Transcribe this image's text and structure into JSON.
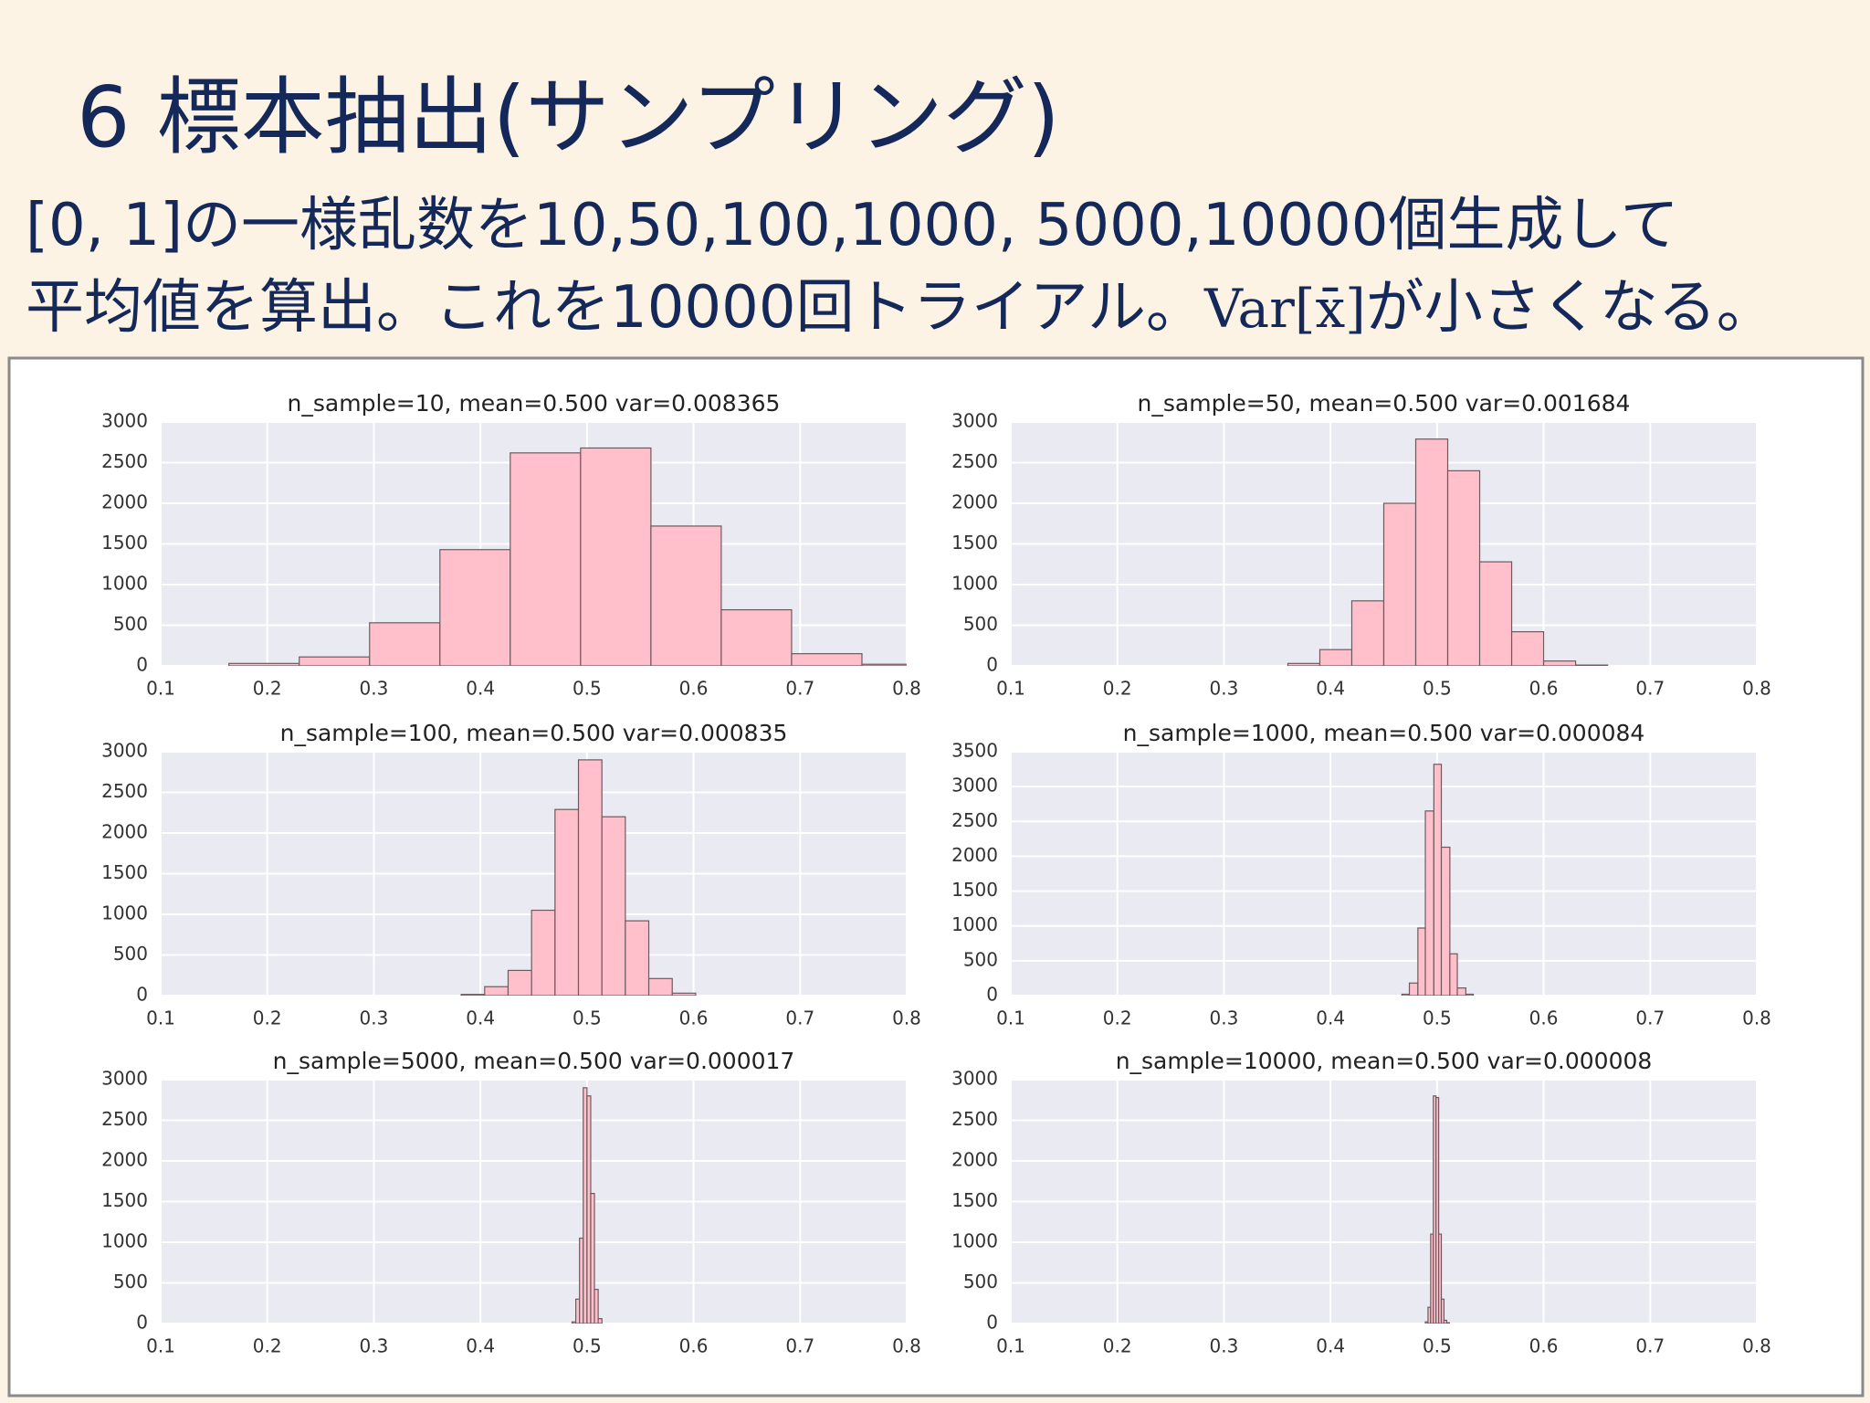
{
  "slide": {
    "title": "6 標本抽出(サンプリング)",
    "subtitle": [
      "[0, 1]の一様乱数を10,50,100,1000, 5000,10000個生成して",
      "平均値を算出。これを10000回トライアル。",
      "Var[x̄]",
      "が小さくなる。"
    ]
  },
  "chart_data": [
    {
      "type": "histogram",
      "title": "n_sample=10, mean=0.500 var=0.008365",
      "color": "#ffc0cb",
      "edgecolor": "#6e5a5e",
      "grid": true,
      "bins": [
        0.164,
        0.23,
        0.296,
        0.362,
        0.428,
        0.494,
        0.56,
        0.626,
        0.692,
        0.758,
        0.824
      ],
      "counts": [
        30,
        110,
        530,
        1430,
        2620,
        2680,
        1720,
        690,
        150,
        20
      ],
      "xlim": [
        0.1,
        0.8
      ],
      "xticks": [
        0.1,
        0.2,
        0.3,
        0.4,
        0.5,
        0.6,
        0.7,
        0.8
      ],
      "ylim": [
        0,
        3000
      ],
      "yticks": [
        0,
        500,
        1000,
        1500,
        2000,
        2500,
        3000
      ]
    },
    {
      "type": "histogram",
      "title": "n_sample=50, mean=0.500 var=0.001684",
      "color": "#ffc0cb",
      "edgecolor": "#6e5a5e",
      "grid": true,
      "bins": [
        0.36,
        0.39,
        0.42,
        0.45,
        0.48,
        0.51,
        0.54,
        0.57,
        0.6,
        0.63,
        0.66
      ],
      "counts": [
        30,
        200,
        800,
        2000,
        2790,
        2400,
        1280,
        420,
        60,
        10
      ],
      "xlim": [
        0.1,
        0.8
      ],
      "xticks": [
        0.1,
        0.2,
        0.3,
        0.4,
        0.5,
        0.6,
        0.7,
        0.8
      ],
      "ylim": [
        0,
        3000
      ],
      "yticks": [
        0,
        500,
        1000,
        1500,
        2000,
        2500,
        3000
      ]
    },
    {
      "type": "histogram",
      "title": "n_sample=100, mean=0.500 var=0.000835",
      "color": "#ffc0cb",
      "edgecolor": "#6e5a5e",
      "grid": true,
      "bins": [
        0.382,
        0.404,
        0.426,
        0.448,
        0.47,
        0.492,
        0.514,
        0.536,
        0.558,
        0.58,
        0.602
      ],
      "counts": [
        15,
        110,
        310,
        1050,
        2290,
        2900,
        2200,
        920,
        210,
        30
      ],
      "xlim": [
        0.1,
        0.8
      ],
      "xticks": [
        0.1,
        0.2,
        0.3,
        0.4,
        0.5,
        0.6,
        0.7,
        0.8
      ],
      "ylim": [
        0,
        3000
      ],
      "yticks": [
        0,
        500,
        1000,
        1500,
        2000,
        2500,
        3000
      ]
    },
    {
      "type": "histogram",
      "title": "n_sample=1000, mean=0.500 var=0.000084",
      "color": "#ffc0cb",
      "edgecolor": "#6e5a5e",
      "grid": true,
      "bins": [
        0.467,
        0.474,
        0.482,
        0.489,
        0.497,
        0.504,
        0.512,
        0.519,
        0.527,
        0.534
      ],
      "counts": [
        20,
        180,
        970,
        2650,
        3320,
        2130,
        600,
        110,
        20
      ],
      "xlim": [
        0.1,
        0.8
      ],
      "xticks": [
        0.1,
        0.2,
        0.3,
        0.4,
        0.5,
        0.6,
        0.7,
        0.8
      ],
      "ylim": [
        0,
        3500
      ],
      "yticks": [
        0,
        500,
        1000,
        1500,
        2000,
        2500,
        3000,
        3500
      ]
    },
    {
      "type": "histogram",
      "title": "n_sample=5000, mean=0.500 var=0.000017",
      "color": "#ffc0cb",
      "edgecolor": "#6e5a5e",
      "grid": true,
      "bins": [
        0.486,
        0.4895,
        0.493,
        0.4965,
        0.5,
        0.5035,
        0.507,
        0.5105,
        0.514
      ],
      "counts": [
        20,
        300,
        1050,
        2900,
        2800,
        1600,
        420,
        60
      ],
      "xlim": [
        0.1,
        0.8
      ],
      "xticks": [
        0.1,
        0.2,
        0.3,
        0.4,
        0.5,
        0.6,
        0.7,
        0.8
      ],
      "ylim": [
        0,
        3000
      ],
      "yticks": [
        0,
        500,
        1000,
        1500,
        2000,
        2500,
        3000
      ]
    },
    {
      "type": "histogram",
      "title": "n_sample=10000, mean=0.500 var=0.000008",
      "color": "#ffc0cb",
      "edgecolor": "#6e5a5e",
      "grid": true,
      "bins": [
        0.489,
        0.4915,
        0.494,
        0.4965,
        0.499,
        0.5015,
        0.504,
        0.5065,
        0.509,
        0.5115
      ],
      "counts": [
        20,
        200,
        1100,
        2800,
        2780,
        1100,
        300,
        40,
        10
      ],
      "xlim": [
        0.1,
        0.8
      ],
      "xticks": [
        0.1,
        0.2,
        0.3,
        0.4,
        0.5,
        0.6,
        0.7,
        0.8
      ],
      "ylim": [
        0,
        3000
      ],
      "yticks": [
        0,
        500,
        1000,
        1500,
        2000,
        2500,
        3000
      ]
    }
  ]
}
